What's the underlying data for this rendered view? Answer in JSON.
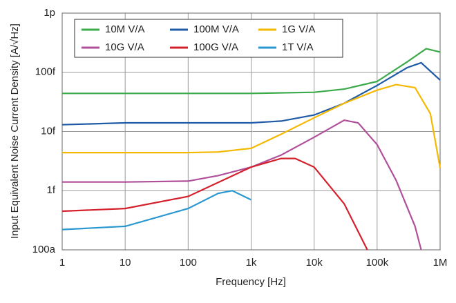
{
  "chart_data": {
    "type": "line",
    "xlabel": "Frequency [Hz]",
    "ylabel": "Input Equivalent Noise Current Density [A/√Hz]",
    "xscale": "log",
    "yscale": "log",
    "grid": true,
    "xlim": [
      1,
      1000000
    ],
    "ylim": [
      1e-16,
      1e-12
    ],
    "xticks": [
      1,
      10,
      100,
      {
        "value": 1000,
        "label": "1k"
      },
      {
        "value": 10000,
        "label": "10k"
      },
      {
        "value": 100000,
        "label": "100k"
      },
      {
        "value": 1000000,
        "label": "1M"
      }
    ],
    "yticks": [
      {
        "value": 1e-16,
        "label": "100a"
      },
      {
        "value": 1e-15,
        "label": "1f"
      },
      {
        "value": 1e-14,
        "label": "10f"
      },
      {
        "value": 1e-13,
        "label": "100f"
      },
      {
        "value": 1e-12,
        "label": "1p"
      }
    ],
    "series": [
      {
        "name": "10M V/A",
        "color": "#3aaa4a",
        "x": [
          1,
          10,
          100,
          1000,
          10000,
          30000,
          100000,
          300000,
          600000,
          1000000
        ],
        "values": [
          4.4e-14,
          4.4e-14,
          4.4e-14,
          4.4e-14,
          4.6e-14,
          5.2e-14,
          7e-14,
          1.5e-13,
          2.5e-13,
          2.2e-13
        ]
      },
      {
        "name": "100M V/A",
        "color": "#1f5aa6",
        "x": [
          1,
          10,
          100,
          1000,
          3000,
          10000,
          30000,
          100000,
          300000,
          500000,
          1000000
        ],
        "values": [
          1.3e-14,
          1.4e-14,
          1.4e-14,
          1.4e-14,
          1.5e-14,
          1.9e-14,
          3e-14,
          6e-14,
          1.2e-13,
          1.45e-13,
          7.4e-14
        ]
      },
      {
        "name": "1G V/A",
        "color": "#f5b800",
        "x": [
          1,
          10,
          100,
          300,
          1000,
          3000,
          10000,
          30000,
          100000,
          200000,
          400000,
          700000,
          1000000
        ],
        "values": [
          4.4e-15,
          4.4e-15,
          4.4e-15,
          4.5e-15,
          5.2e-15,
          9e-15,
          1.7e-14,
          3e-14,
          5e-14,
          6.2e-14,
          5.5e-14,
          2e-14,
          2.4e-15
        ]
      },
      {
        "name": "10G V/A",
        "color": "#b0509a",
        "x": [
          1,
          10,
          100,
          300,
          1000,
          3000,
          10000,
          30000,
          50000,
          100000,
          200000,
          400000,
          500000
        ],
        "values": [
          1.4e-15,
          1.4e-15,
          1.45e-15,
          1.8e-15,
          2.5e-15,
          4e-15,
          8e-15,
          1.55e-14,
          1.4e-14,
          6e-15,
          1.5e-15,
          2.5e-16,
          1e-16
        ]
      },
      {
        "name": "100G V/A",
        "color": "#d4202a",
        "x": [
          1,
          10,
          100,
          1000,
          3000,
          5000,
          10000,
          30000,
          70000
        ],
        "values": [
          4.5e-16,
          5e-16,
          8e-16,
          2.5e-15,
          3.5e-15,
          3.5e-15,
          2.5e-15,
          6e-16,
          1e-16
        ]
      },
      {
        "name": "1T V/A",
        "color": "#2a98d0",
        "x": [
          1,
          10,
          100,
          300,
          500,
          1000
        ],
        "values": [
          2.2e-16,
          2.5e-16,
          5e-16,
          9e-16,
          1e-15,
          7e-16
        ]
      }
    ]
  }
}
